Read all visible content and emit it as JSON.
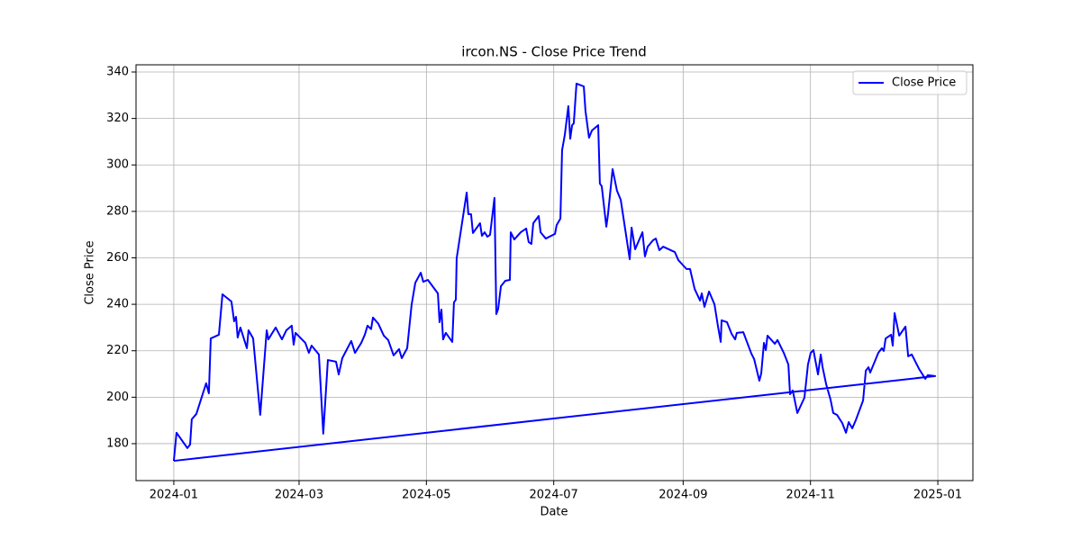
{
  "chart_data": {
    "type": "line",
    "title": "ircon.NS - Close Price Trend",
    "x_label": "Date",
    "y_label": "Close Price",
    "x": [
      0,
      1.3,
      6.5,
      7.8,
      8.6,
      10.8,
      15.5,
      16.8,
      17.7,
      21.6,
      23.3,
      27.6,
      28.9,
      29.8,
      30.6,
      31.9,
      35.0,
      35.8,
      38.0,
      41.4,
      44.5,
      45.3,
      48.8,
      51.8,
      53.9,
      56.5,
      57.4,
      58.3,
      63.0,
      64.7,
      66.0,
      69.5,
      71.6,
      73.8,
      77.7,
      79.0,
      80.7,
      85.0,
      86.8,
      89.8,
      91.5,
      92.8,
      94.5,
      95.4,
      98.0,
      100.6,
      102.7,
      105.3,
      107.9,
      109.2,
      111.8,
      113.9,
      115.7,
      118.3,
      119.5,
      121.7,
      126.5,
      127.3,
      128.2,
      129.0,
      130.3,
      133.4,
      134.2,
      135.1,
      135.5,
      140.3,
      141.1,
      142.4,
      143.3,
      146.7,
      147.6,
      148.9,
      150.2,
      151.5,
      153.6,
      154.5,
      155.4,
      156.7,
      158.8,
      161.0,
      161.4,
      163.1,
      166.2,
      168.8,
      170.0,
      171.3,
      172.2,
      174.8,
      175.7,
      178.2,
      182.6,
      183.4,
      185.2,
      186.0,
      187.3,
      189.0,
      189.9,
      190.8,
      191.6,
      192.9,
      196.4,
      197.2,
      198.9,
      200.3,
      203.3,
      204.1,
      205.0,
      207.2,
      208.0,
      210.2,
      212.3,
      214.1,
      218.4,
      219.3,
      221.0,
      224.5,
      225.7,
      227.0,
      229.6,
      230.9,
      232.6,
      234.4,
      240.0,
      241.7,
      245.6,
      247.3,
      249.5,
      252.1,
      252.9,
      254.2,
      256.4,
      259.0,
      260.7,
      262.0,
      262.4,
      265.0,
      267.2,
      268.9,
      269.7,
      272.8,
      276.7,
      278.0,
      280.5,
      281.4,
      282.7,
      283.6,
      284.4,
      287.9,
      289.2,
      292.2,
      294.4,
      295.2,
      296.5,
      298.7,
      302.1,
      303.8,
      305.1,
      306.4,
      308.6,
      309.9,
      310.8,
      312.5,
      314.6,
      315.9,
      317.7,
      320.2,
      322.0,
      323.3,
      325.0,
      326.7,
      330.2,
      331.5,
      332.8,
      333.6,
      337.5,
      339.2,
      340.1,
      341.0,
      343.6,
      344.4,
      345.3,
      347.5,
      350.5,
      351.8,
      353.5,
      357.0,
      360.0,
      361.2,
      364.7,
      0
    ],
    "series": [
      {
        "name": "Close Price",
        "color": "#0000ff",
        "values": [
          172.6,
          184.7,
          178.1,
          179.6,
          190.5,
          192.8,
          206.0,
          201.7,
          225.3,
          226.9,
          244.3,
          241.2,
          232.7,
          234.6,
          225.7,
          230.0,
          221.1,
          228.8,
          225.3,
          192.4,
          228.8,
          224.9,
          230.0,
          224.9,
          228.8,
          230.8,
          222.6,
          227.7,
          223.4,
          219.1,
          222.2,
          218.4,
          184.3,
          216.0,
          215.3,
          209.8,
          216.8,
          224.2,
          219.1,
          223.4,
          226.9,
          230.8,
          229.3,
          234.3,
          231.6,
          226.5,
          224.6,
          218.0,
          220.7,
          216.8,
          221.1,
          239.7,
          249.3,
          253.6,
          249.7,
          250.5,
          244.7,
          232.3,
          237.7,
          224.9,
          227.7,
          223.8,
          240.8,
          242.0,
          259.8,
          288.1,
          278.8,
          278.8,
          270.7,
          274.9,
          269.5,
          271.0,
          269.1,
          269.9,
          285.8,
          235.8,
          238.1,
          247.8,
          250.1,
          250.5,
          271.0,
          267.9,
          271.0,
          272.6,
          266.8,
          266.0,
          274.9,
          278.0,
          271.0,
          268.3,
          270.3,
          274.1,
          276.9,
          306.3,
          312.9,
          325.3,
          311.3,
          317.1,
          317.9,
          335.0,
          333.8,
          323.3,
          311.7,
          314.8,
          317.1,
          292.0,
          290.8,
          273.4,
          278.8,
          298.2,
          288.9,
          285.0,
          259.4,
          273.0,
          263.7,
          271.0,
          260.6,
          264.8,
          267.6,
          268.3,
          263.3,
          264.8,
          262.5,
          259.0,
          255.2,
          255.2,
          246.6,
          241.6,
          244.7,
          238.9,
          245.5,
          240.0,
          230.4,
          223.8,
          233.1,
          232.3,
          227.3,
          224.9,
          227.7,
          228.0,
          218.7,
          216.4,
          207.1,
          210.2,
          223.4,
          220.3,
          226.5,
          223.0,
          224.6,
          219.1,
          214.1,
          201.3,
          202.9,
          193.2,
          199.8,
          214.1,
          219.1,
          220.3,
          209.8,
          218.4,
          212.9,
          205.6,
          199.0,
          193.2,
          192.4,
          188.9,
          184.7,
          189.3,
          186.6,
          190.1,
          198.6,
          211.4,
          212.9,
          210.6,
          219.1,
          221.1,
          219.9,
          225.3,
          226.9,
          222.2,
          236.2,
          226.5,
          230.4,
          217.6,
          218.4,
          212.2,
          207.9,
          209.5,
          209.1,
          172.6
        ]
      }
    ],
    "xlim": [
      -18.1,
      382.8
    ],
    "xticks": [
      {
        "value": 0,
        "label": "2024-01"
      },
      {
        "value": 60,
        "label": "2024-03"
      },
      {
        "value": 121,
        "label": "2024-05"
      },
      {
        "value": 182,
        "label": "2024-07"
      },
      {
        "value": 244,
        "label": "2024-09"
      },
      {
        "value": 305,
        "label": "2024-11"
      },
      {
        "value": 366,
        "label": "2025-01"
      }
    ],
    "ylim": [
      164.1,
      343.1
    ],
    "yticks": [
      180,
      200,
      220,
      240,
      260,
      280,
      300,
      320,
      340
    ],
    "grid": true,
    "legend": "upper right"
  }
}
